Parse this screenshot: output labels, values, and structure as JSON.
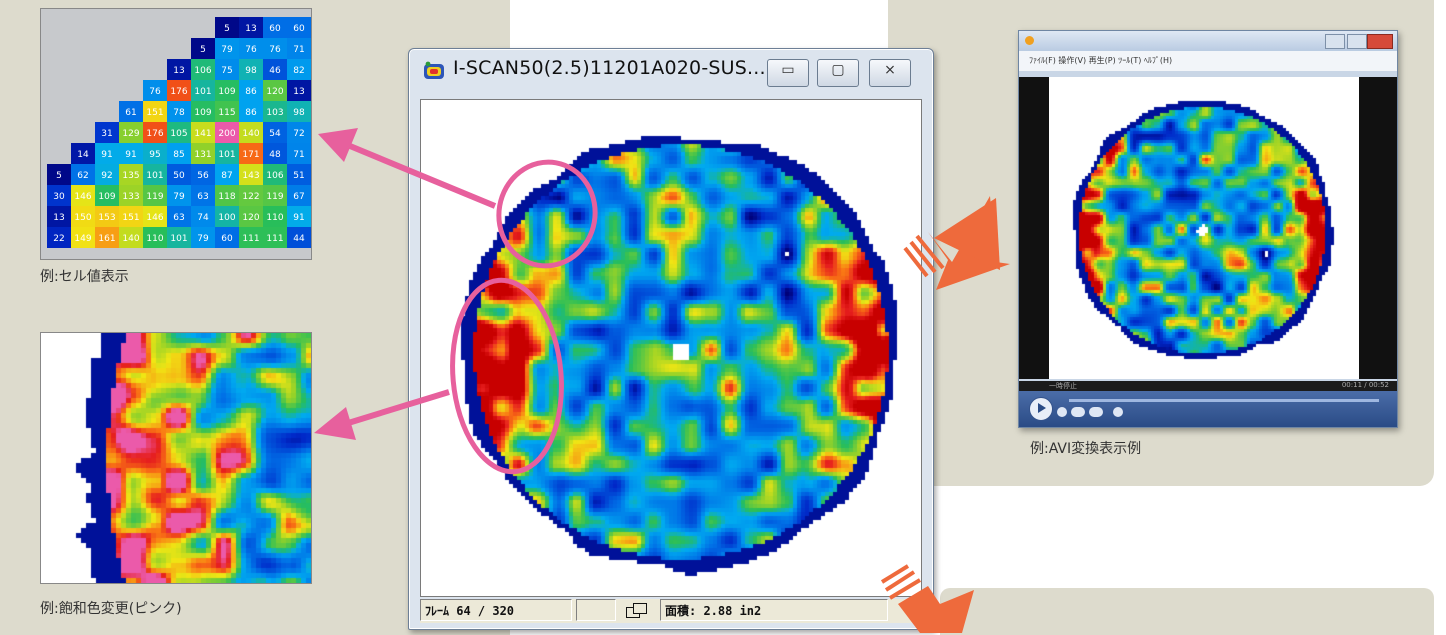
{
  "window": {
    "title": "I-SCAN50(2.5)11201A020-SUS...",
    "buttons": {
      "minimize": "▭",
      "maximize": "▢",
      "close": "⨯"
    },
    "status": {
      "frame": "ﾌﾚｰﾑ 64 / 320",
      "area": "面積: 2.88 in2"
    }
  },
  "examples": {
    "cell_values_caption": "例:セル値表示",
    "saturation_caption": "例:飽和色変更(ピンク)",
    "avi_caption": "例:AVI変換表示例"
  },
  "mini_player": {
    "menu": "ﾌｧｲﾙ(F)  操作(V)  再生(P)  ﾂｰﾙ(T)  ﾍﾙﾌﾟ(H)",
    "status_left": "一時停止",
    "status_right": "00:11 / 00:52"
  },
  "cell_grid": {
    "rows": [
      [
        "5",
        "13",
        "60",
        "60"
      ],
      [
        "5",
        "79",
        "76",
        "76",
        "71"
      ],
      [
        "13",
        "106",
        "75",
        "98",
        "46",
        "82"
      ],
      [
        "76",
        "176",
        "101",
        "109",
        "86",
        "120",
        "13"
      ],
      [
        "61",
        "151",
        "78",
        "109",
        "115",
        "86",
        "103",
        "98"
      ],
      [
        "31",
        "129",
        "176",
        "105",
        "141",
        "200",
        "140",
        "54",
        "72"
      ],
      [
        "14",
        "91",
        "91",
        "95",
        "85",
        "131",
        "101",
        "171",
        "48",
        "71"
      ],
      [
        "5",
        "62",
        "92",
        "135",
        "101",
        "50",
        "56",
        "87",
        "143",
        "106",
        "51"
      ],
      [
        "30",
        "146",
        "109",
        "133",
        "119",
        "79",
        "63",
        "118",
        "122",
        "119",
        "67"
      ],
      [
        "13",
        "150",
        "153",
        "151",
        "146",
        "63",
        "74",
        "100",
        "120",
        "110",
        "91"
      ],
      [
        "22",
        "149",
        "161",
        "140",
        "110",
        "101",
        "79",
        "60",
        "111",
        "111",
        "44"
      ]
    ]
  },
  "colors": {
    "panel": "#dddbcd",
    "pink_accent": "#e7609d",
    "orange_arrow": "#ee6a3c"
  }
}
